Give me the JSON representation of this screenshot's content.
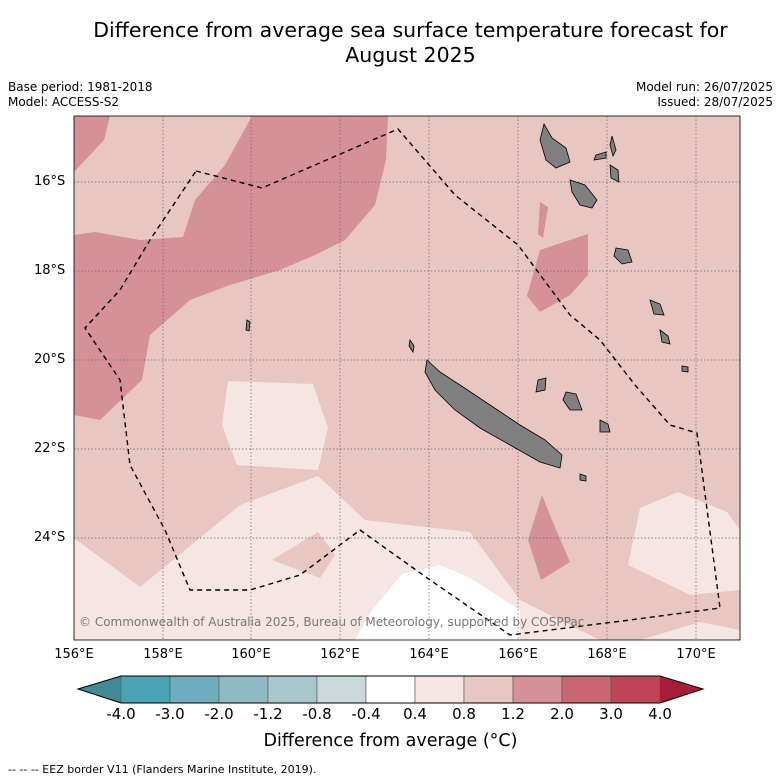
{
  "header": {
    "title_line1": "Difference from average sea surface temperature forecast for",
    "title_line2": "August 2025",
    "base_period": "Base period: 1981-2018",
    "model": "Model: ACCESS-S2",
    "model_run": "Model run: 26/07/2025",
    "issued": "Issued: 28/07/2025"
  },
  "map": {
    "extent": {
      "lon": [
        156,
        171
      ],
      "lat": [
        -26.2,
        -14.4
      ]
    },
    "lat_ticks": [
      "16°S",
      "18°S",
      "20°S",
      "22°S",
      "24°S"
    ],
    "lon_ticks": [
      "156°E",
      "158°E",
      "160°E",
      "162°E",
      "164°E",
      "166°E",
      "168°E",
      "170°E"
    ],
    "copyright": "© Commonwealth of Australia 2025, Bureau of Meteorology, supported by COSPPac",
    "land_color": "#808080",
    "eez_style": "dashed-black"
  },
  "colorbar": {
    "title": "Difference from average (°C)",
    "tick_labels": [
      "-4.0",
      "-3.0",
      "-2.0",
      "-1.2",
      "-0.8",
      "-0.4",
      "0.4",
      "0.8",
      "1.2",
      "2.0",
      "3.0",
      "4.0"
    ],
    "colors": [
      "#3e8a97",
      "#48a3b3",
      "#6eadbd",
      "#8fbac5",
      "#a9c8cd",
      "#cbd8da",
      "#ffffff",
      "#f5e5e3",
      "#e8c6c1",
      "#d69098",
      "#c96670",
      "#be4555",
      "#a81e3a"
    ]
  },
  "footer": {
    "legend_text": "--  --  -- EEZ border V11 (Flanders Marine Institute, 2019)."
  }
}
